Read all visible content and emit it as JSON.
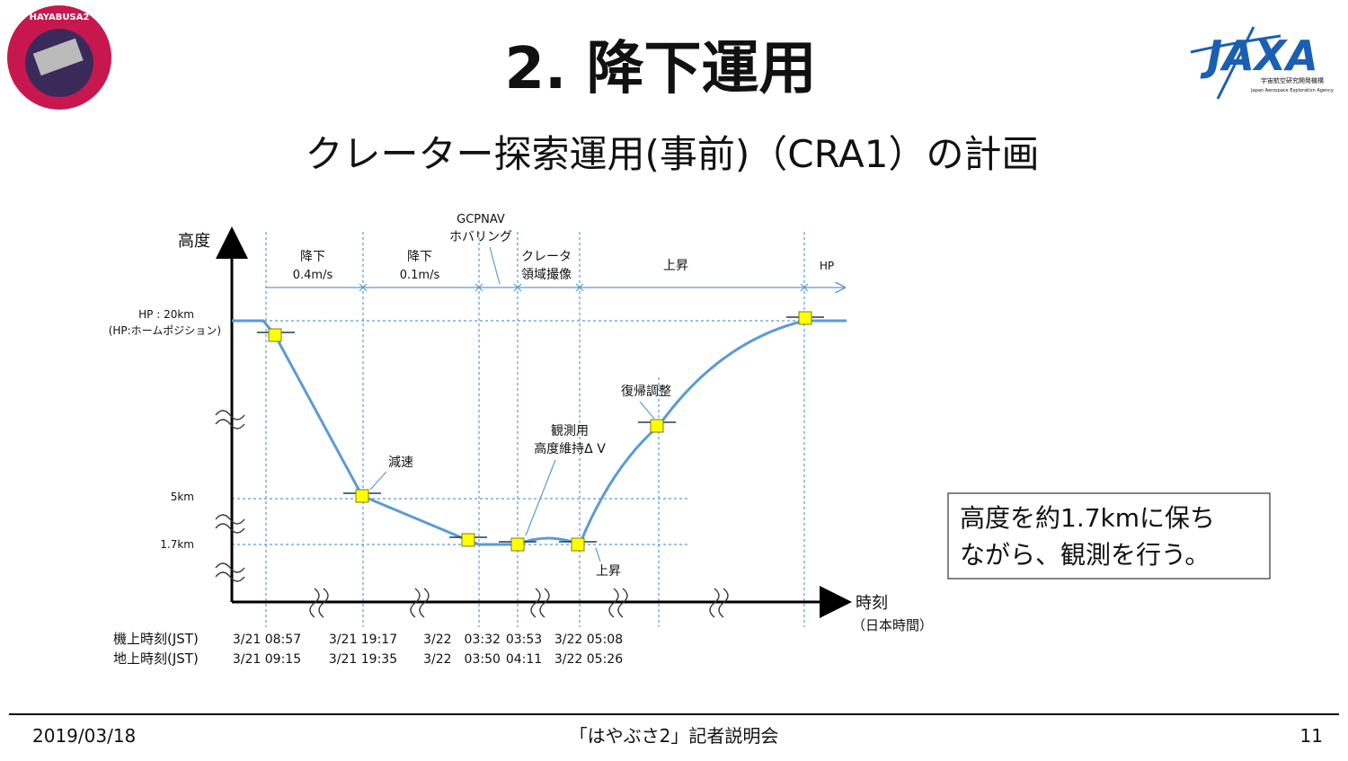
{
  "header": {
    "title": "2. 降下運用",
    "subtitle": "クレーター探索運用(事前)（CRA1）の計画",
    "left_logo": "HAYABUSA2",
    "right_logo": {
      "name": "JAXA",
      "ja": "宇宙航空研究開発機構",
      "en": "Japan Aerospace Exploration Agency"
    }
  },
  "diagram": {
    "y_axis_label": "高度",
    "x_axis_label": "時刻",
    "x_axis_sublabel": "（日本時間）",
    "altitude_labels": [
      "HP : 20km",
      "(HP:ホームポジション)",
      "5km",
      "1.7km"
    ],
    "phases": [
      {
        "label": "降下",
        "sub": "0.4m/s"
      },
      {
        "label": "降下",
        "sub": "0.1m/s"
      },
      {
        "label": "GCPNAV",
        "sub": "ホバリング"
      },
      {
        "label": "クレータ",
        "sub": "領域撮像"
      },
      {
        "label": "上昇"
      },
      {
        "label": "HP"
      }
    ],
    "annotations": [
      "減速",
      "観測用",
      "高度維持Δ V",
      "復帰調整",
      "上昇"
    ],
    "time_rows": [
      {
        "label": "機上時刻(JST)",
        "times": [
          "3/21 08:57",
          "3/21 19:17",
          "3/22　03:32",
          "03:53",
          "3/22 05:08"
        ]
      },
      {
        "label": "地上時刻(JST)",
        "times": [
          "3/21 09:15",
          "3/21 19:35",
          "3/22　03:50",
          "04:11",
          "3/22 05:26"
        ]
      }
    ]
  },
  "note": [
    "高度を約1.7kmに保ち",
    "ながら、観測を行う。"
  ],
  "footer": {
    "date": "2019/03/18",
    "event": "「はやぶさ2」記者説明会",
    "page": "11"
  }
}
